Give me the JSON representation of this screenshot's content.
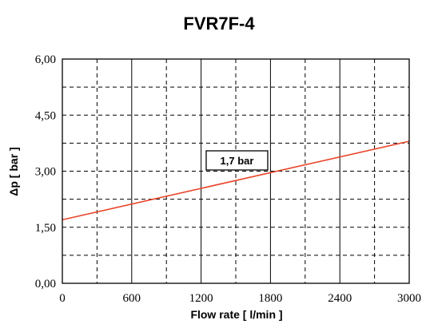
{
  "chart_data": {
    "type": "line",
    "title": "FVR7F-4",
    "xlabel": "Flow rate [ l/min ]",
    "ylabel": "Δp [ bar ]",
    "xlim": [
      0,
      3000
    ],
    "ylim": [
      0,
      6
    ],
    "x_ticks": [
      0,
      600,
      1200,
      1800,
      2400,
      3000
    ],
    "x_tick_labels": [
      "0",
      "600",
      "1200",
      "1800",
      "2400",
      "3000"
    ],
    "y_ticks": [
      0,
      1.5,
      3,
      4.5,
      6
    ],
    "y_tick_labels": [
      "0,00",
      "1,50",
      "3,00",
      "4,50",
      "6,00"
    ],
    "grid": "on",
    "series": [
      {
        "x": [
          0,
          3000
        ],
        "y": [
          1.7,
          3.8
        ],
        "color": "#e8452a"
      }
    ],
    "annotation": {
      "text": "1,7 bar"
    }
  }
}
